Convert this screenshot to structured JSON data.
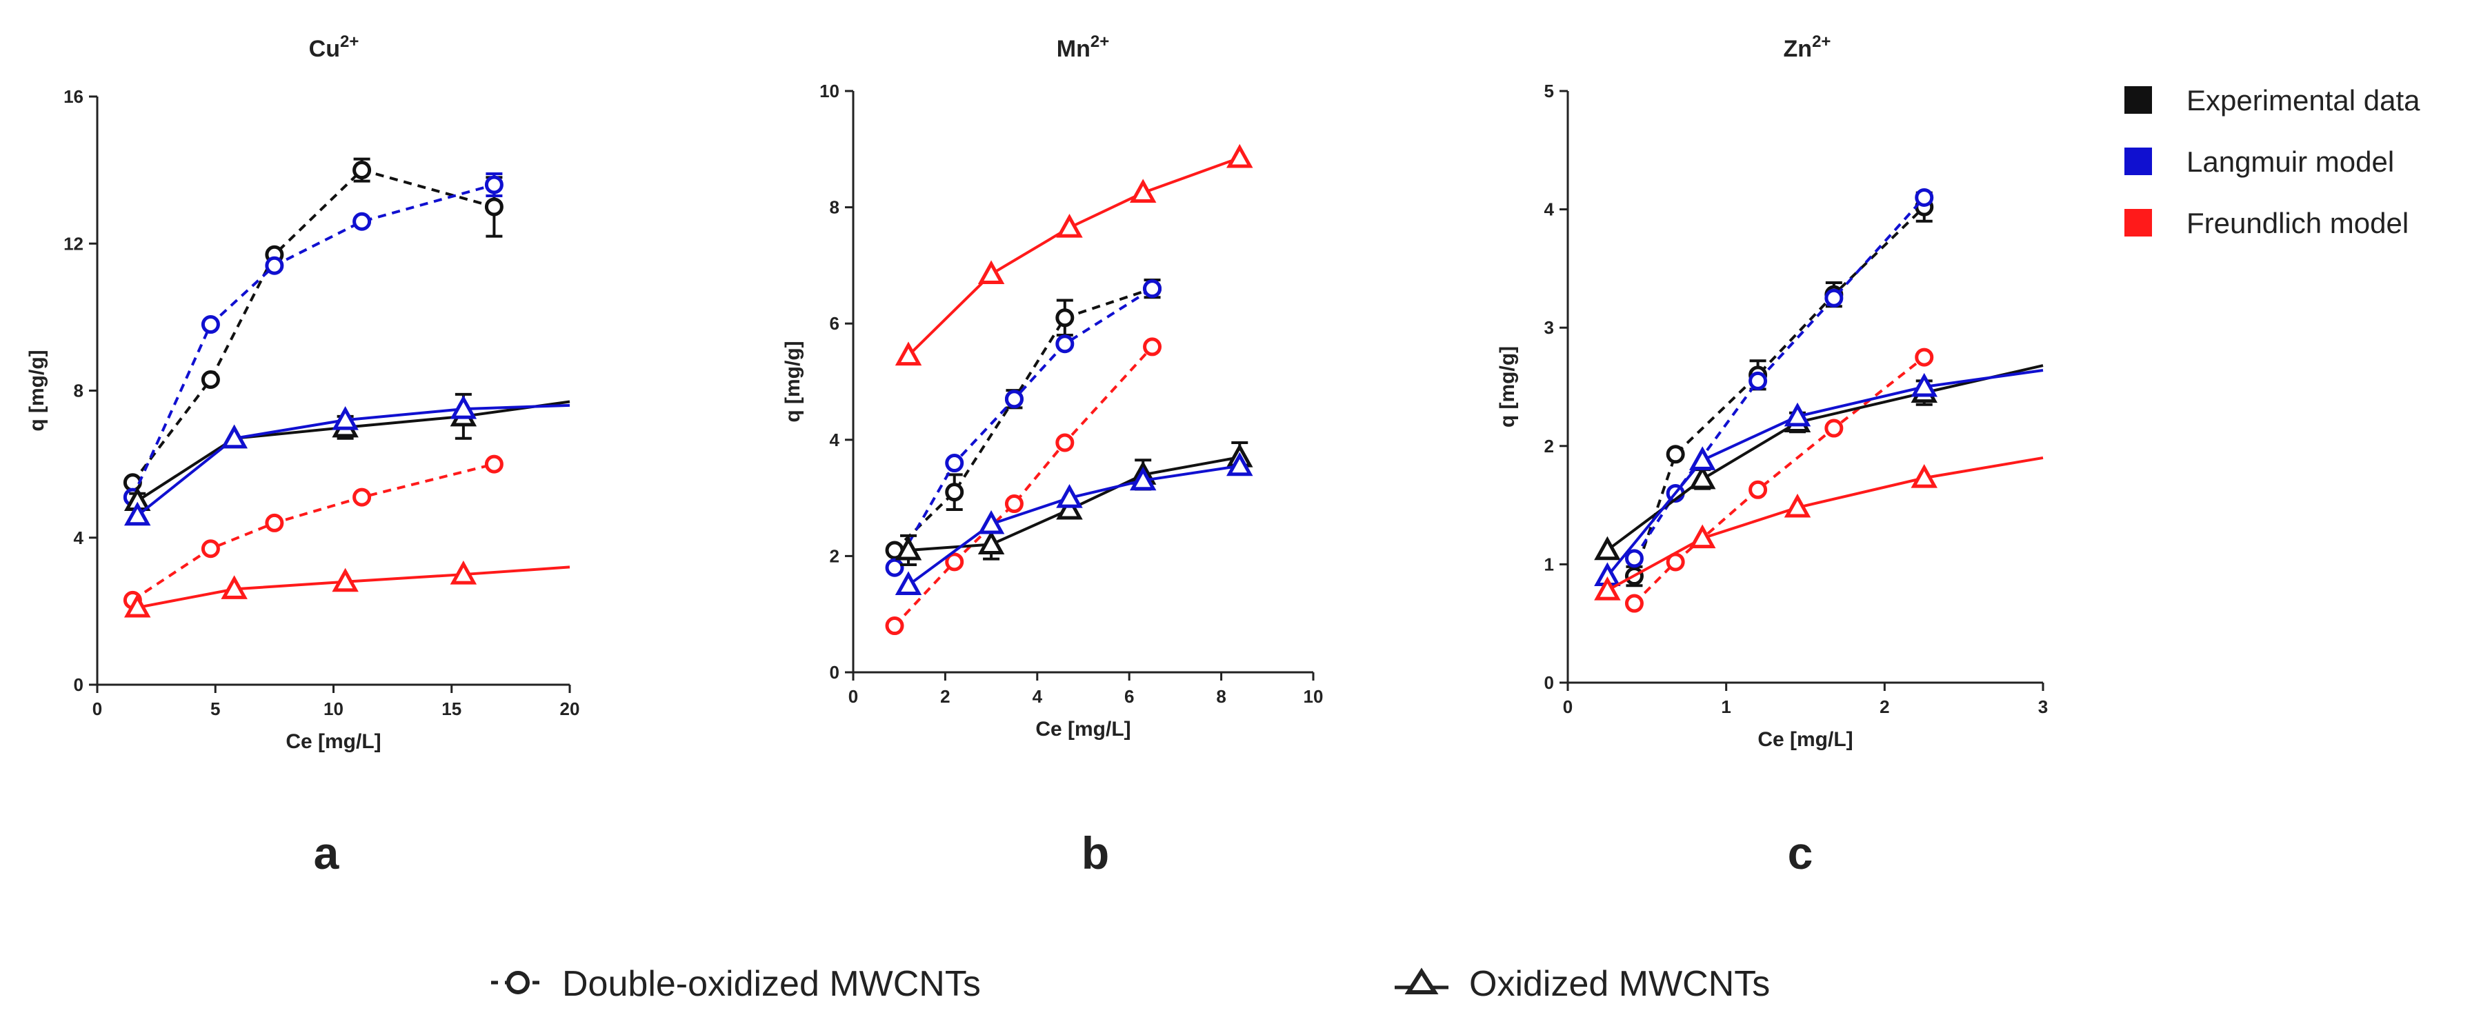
{
  "colors": {
    "experimental": "#111111",
    "langmuir": "#1010d0",
    "freundlich": "#ff1a1a",
    "axis": "#222222"
  },
  "legend": {
    "items": [
      {
        "label": "Experimental data",
        "color": "#111111"
      },
      {
        "label": "Langmuir model",
        "color": "#1010d0"
      },
      {
        "label": "Freundlich model",
        "color": "#ff1a1a"
      }
    ]
  },
  "marker_legend": {
    "double": "Double-oxidized MWCNTs",
    "oxidized": "Oxidized MWCNTs"
  },
  "chart_data": [
    {
      "type": "line",
      "title": "Cu",
      "title_sup": "2+",
      "panel_label": "a",
      "xlabel": "Ce [mg/L]",
      "ylabel": "q [mg/g]",
      "xlim": [
        0,
        20
      ],
      "ylim": [
        0,
        16
      ],
      "xticks": [
        0,
        5,
        10,
        15,
        20
      ],
      "yticks": [
        0,
        4,
        8,
        12,
        16
      ],
      "series": [
        {
          "name": "Double-oxidized MWCNTs - Experimental data",
          "marker": "circle",
          "color": "#111111",
          "dashed": true,
          "x": [
            1.5,
            4.8,
            7.5,
            11.2,
            16.8
          ],
          "y": [
            5.5,
            8.3,
            11.7,
            14.0,
            13.0
          ],
          "err": [
            0,
            0,
            0,
            0.3,
            0.8
          ]
        },
        {
          "name": "Double-oxidized MWCNTs - Langmuir model",
          "marker": "circle",
          "color": "#1010d0",
          "dashed": true,
          "x": [
            1.5,
            4.8,
            7.5,
            11.2,
            16.8
          ],
          "y": [
            5.1,
            9.8,
            11.4,
            12.6,
            13.6
          ],
          "err": [
            0,
            0,
            0,
            0,
            0.3
          ]
        },
        {
          "name": "Double-oxidized MWCNTs - Freundlich model",
          "marker": "circle",
          "color": "#ff1a1a",
          "dashed": true,
          "x": [
            1.5,
            4.8,
            7.5,
            11.2,
            16.8
          ],
          "y": [
            2.3,
            3.7,
            4.4,
            5.1,
            6.0
          ],
          "err": [
            0,
            0,
            0,
            0,
            0
          ]
        },
        {
          "name": "Oxidized MWCNTs - Experimental data",
          "marker": "triangle",
          "color": "#111111",
          "dashed": false,
          "x": [
            1.7,
            5.8,
            10.5,
            15.5,
            20
          ],
          "y": [
            5.0,
            6.7,
            7.0,
            7.3,
            7.7
          ],
          "err": [
            0.2,
            0,
            0.3,
            0.6,
            0
          ],
          "mask": [
            1,
            1,
            1,
            1,
            0
          ]
        },
        {
          "name": "Oxidized MWCNTs - Langmuir model",
          "marker": "triangle",
          "color": "#1010d0",
          "dashed": false,
          "x": [
            1.7,
            5.8,
            10.5,
            15.5,
            20
          ],
          "y": [
            4.6,
            6.7,
            7.2,
            7.5,
            7.6
          ],
          "err": [
            0,
            0,
            0,
            0,
            0
          ],
          "mask": [
            1,
            1,
            1,
            1,
            0
          ]
        },
        {
          "name": "Oxidized MWCNTs - Freundlich model",
          "marker": "triangle",
          "color": "#ff1a1a",
          "dashed": false,
          "x": [
            1.7,
            5.8,
            10.5,
            15.5,
            20
          ],
          "y": [
            2.1,
            2.6,
            2.8,
            3.0,
            3.2
          ],
          "err": [
            0,
            0,
            0,
            0,
            0
          ],
          "mask": [
            1,
            1,
            1,
            1,
            0
          ]
        }
      ]
    },
    {
      "type": "line",
      "title": "Mn",
      "title_sup": "2+",
      "panel_label": "b",
      "xlabel": "Ce [mg/L]",
      "ylabel": "q [mg/g]",
      "xlim": [
        0,
        10
      ],
      "ylim": [
        0,
        10
      ],
      "xticks": [
        0,
        2,
        4,
        6,
        8,
        10
      ],
      "yticks": [
        0,
        2,
        4,
        6,
        8,
        10
      ],
      "series": [
        {
          "name": "Double-oxidized MWCNTs - Experimental data",
          "marker": "circle",
          "color": "#111111",
          "dashed": true,
          "x": [
            0.9,
            2.2,
            3.5,
            4.6,
            6.5
          ],
          "y": [
            2.1,
            3.1,
            4.7,
            6.1,
            6.6
          ],
          "err": [
            0,
            0.3,
            0.15,
            0.3,
            0.15
          ]
        },
        {
          "name": "Double-oxidized MWCNTs - Langmuir model",
          "marker": "circle",
          "color": "#1010d0",
          "dashed": true,
          "x": [
            0.9,
            2.2,
            3.5,
            4.6,
            6.5
          ],
          "y": [
            1.8,
            3.6,
            4.7,
            5.65,
            6.6
          ],
          "err": [
            0,
            0,
            0,
            0,
            0
          ]
        },
        {
          "name": "Double-oxidized MWCNTs - Freundlich model",
          "marker": "circle",
          "color": "#ff1a1a",
          "dashed": true,
          "x": [
            0.9,
            2.2,
            3.5,
            4.6,
            6.5
          ],
          "y": [
            0.8,
            1.9,
            2.9,
            3.95,
            5.6
          ],
          "err": [
            0,
            0,
            0,
            0,
            0
          ]
        },
        {
          "name": "Oxidized MWCNTs - Experimental data",
          "marker": "triangle",
          "color": "#111111",
          "dashed": false,
          "x": [
            1.2,
            3.0,
            4.7,
            6.3,
            8.4
          ],
          "y": [
            2.1,
            2.2,
            2.8,
            3.4,
            3.7
          ],
          "err": [
            0.25,
            0.25,
            0,
            0.25,
            0.25
          ]
        },
        {
          "name": "Oxidized MWCNTs - Langmuir model",
          "marker": "triangle",
          "color": "#1010d0",
          "dashed": false,
          "x": [
            1.2,
            3.0,
            4.7,
            6.3,
            8.4
          ],
          "y": [
            1.5,
            2.55,
            3.0,
            3.3,
            3.55
          ],
          "err": [
            0,
            0,
            0,
            0,
            0
          ]
        },
        {
          "name": "Oxidized MWCNTs - Freundlich model",
          "marker": "triangle",
          "color": "#ff1a1a",
          "dashed": false,
          "x": [
            1.2,
            3.0,
            4.7,
            6.3,
            8.4
          ],
          "y": [
            5.45,
            6.85,
            7.65,
            8.25,
            8.85
          ],
          "err": [
            0,
            0,
            0,
            0,
            0
          ]
        }
      ]
    },
    {
      "type": "line",
      "title": "Zn",
      "title_sup": "2+",
      "panel_label": "c",
      "xlabel": "Ce [mg/L]",
      "ylabel": "q [mg/g]",
      "xlim": [
        0,
        3
      ],
      "ylim": [
        0,
        5
      ],
      "xticks": [
        0,
        1,
        2,
        3
      ],
      "yticks": [
        0,
        1,
        2,
        3,
        4,
        5
      ],
      "series": [
        {
          "name": "Double-oxidized MWCNTs - Experimental data",
          "marker": "circle",
          "color": "#111111",
          "dashed": true,
          "x": [
            0.42,
            0.68,
            1.2,
            1.68,
            2.25
          ],
          "y": [
            0.9,
            1.93,
            2.6,
            3.28,
            4.02
          ],
          "err": [
            0.08,
            0,
            0.12,
            0.1,
            0.12
          ]
        },
        {
          "name": "Double-oxidized MWCNTs - Langmuir model",
          "marker": "circle",
          "color": "#1010d0",
          "dashed": true,
          "x": [
            0.42,
            0.68,
            1.2,
            1.68,
            2.25
          ],
          "y": [
            1.05,
            1.6,
            2.55,
            3.25,
            4.1
          ],
          "err": [
            0,
            0,
            0,
            0,
            0
          ]
        },
        {
          "name": "Double-oxidized MWCNTs - Freundlich model",
          "marker": "circle",
          "color": "#ff1a1a",
          "dashed": true,
          "x": [
            0.42,
            0.68,
            1.2,
            1.68,
            2.25
          ],
          "y": [
            0.67,
            1.02,
            1.63,
            2.15,
            2.75
          ],
          "err": [
            0,
            0,
            0,
            0,
            0
          ]
        },
        {
          "name": "Oxidized MWCNTs - Experimental data",
          "marker": "triangle",
          "color": "#111111",
          "dashed": false,
          "x": [
            0.25,
            0.85,
            1.45,
            2.25,
            3.0
          ],
          "y": [
            1.12,
            1.72,
            2.2,
            2.45,
            2.68
          ],
          "err": [
            0,
            0.08,
            0.08,
            0.1,
            0
          ],
          "mask": [
            1,
            1,
            1,
            1,
            0
          ]
        },
        {
          "name": "Oxidized MWCNTs - Langmuir model",
          "marker": "triangle",
          "color": "#1010d0",
          "dashed": false,
          "x": [
            0.25,
            0.85,
            1.45,
            2.25,
            3.0
          ],
          "y": [
            0.9,
            1.88,
            2.25,
            2.5,
            2.64
          ],
          "err": [
            0,
            0,
            0,
            0,
            0
          ],
          "mask": [
            1,
            1,
            1,
            1,
            0
          ]
        },
        {
          "name": "Oxidized MWCNTs - Freundlich model",
          "marker": "triangle",
          "color": "#ff1a1a",
          "dashed": false,
          "x": [
            0.25,
            0.85,
            1.45,
            2.25,
            3.0
          ],
          "y": [
            0.78,
            1.22,
            1.48,
            1.73,
            1.9
          ],
          "err": [
            0,
            0,
            0,
            0,
            0
          ],
          "mask": [
            1,
            1,
            1,
            1,
            0
          ]
        }
      ]
    }
  ]
}
